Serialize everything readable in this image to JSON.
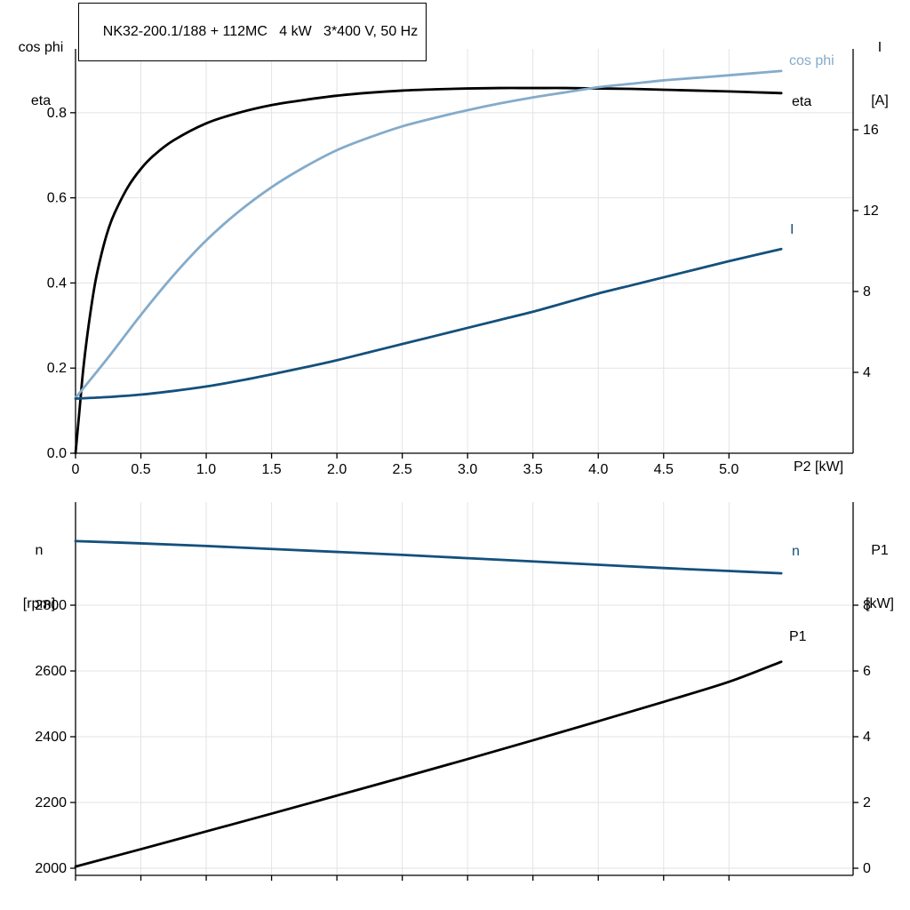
{
  "title": "NK32-200.1/188 + 112MC   4 kW   3*400 V, 50 Hz",
  "colors": {
    "curve_black": "#000000",
    "curve_light_blue": "#84abca",
    "curve_dark_blue": "#14507c",
    "grid": "#e3e3e3",
    "axis": "#000000",
    "text": "#000000",
    "background": "#ffffff"
  },
  "chart_data": [
    {
      "type": "line",
      "title": "NK32-200.1/188 + 112MC   4 kW   3*400 V, 50 Hz",
      "x": {
        "label": "P2 [kW]",
        "range": [
          0,
          5.95
        ],
        "ticks": [
          0,
          0.5,
          1.0,
          1.5,
          2.0,
          2.5,
          3.0,
          3.5,
          4.0,
          4.5,
          5.0
        ],
        "tick_labels": [
          "0",
          "0.5",
          "1.0",
          "1.5",
          "2.0",
          "2.5",
          "3.0",
          "3.5",
          "4.0",
          "4.5",
          "5.0"
        ]
      },
      "y_left": {
        "title_lines": [
          "cos phi",
          "eta"
        ],
        "range": [
          0,
          0.95
        ],
        "ticks": [
          0.0,
          0.2,
          0.4,
          0.6,
          0.8
        ],
        "tick_labels": [
          "0.0",
          "0.2",
          "0.4",
          "0.6",
          "0.8"
        ]
      },
      "y_right": {
        "title_lines": [
          "I",
          "[A]"
        ],
        "range": [
          0,
          20
        ],
        "ticks": [
          4,
          8,
          12,
          16
        ],
        "tick_labels": [
          "4",
          "8",
          "12",
          "16"
        ]
      },
      "grid": true,
      "legend_position": "curve-end-right",
      "series": [
        {
          "name": "eta",
          "axis": "left",
          "color": "curve_black",
          "points": [
            [
              0,
              0
            ],
            [
              0.03,
              0.1
            ],
            [
              0.06,
              0.2
            ],
            [
              0.1,
              0.3
            ],
            [
              0.15,
              0.4
            ],
            [
              0.2,
              0.47
            ],
            [
              0.25,
              0.525
            ],
            [
              0.3,
              0.565
            ],
            [
              0.4,
              0.625
            ],
            [
              0.5,
              0.668
            ],
            [
              0.6,
              0.7
            ],
            [
              0.75,
              0.735
            ],
            [
              1.0,
              0.775
            ],
            [
              1.25,
              0.8
            ],
            [
              1.5,
              0.818
            ],
            [
              1.75,
              0.83
            ],
            [
              2.0,
              0.84
            ],
            [
              2.25,
              0.847
            ],
            [
              2.5,
              0.852
            ],
            [
              2.75,
              0.855
            ],
            [
              3.0,
              0.857
            ],
            [
              3.25,
              0.858
            ],
            [
              3.5,
              0.858
            ],
            [
              3.75,
              0.858
            ],
            [
              4.0,
              0.857
            ],
            [
              4.25,
              0.856
            ],
            [
              4.5,
              0.854
            ],
            [
              4.75,
              0.852
            ],
            [
              5.0,
              0.85
            ],
            [
              5.2,
              0.848
            ],
            [
              5.4,
              0.846
            ]
          ]
        },
        {
          "name": "cos phi",
          "axis": "left",
          "color": "curve_light_blue",
          "points": [
            [
              0,
              0.13
            ],
            [
              0.25,
              0.225
            ],
            [
              0.5,
              0.325
            ],
            [
              0.75,
              0.418
            ],
            [
              1.0,
              0.5
            ],
            [
              1.25,
              0.568
            ],
            [
              1.5,
              0.625
            ],
            [
              1.75,
              0.672
            ],
            [
              2.0,
              0.712
            ],
            [
              2.25,
              0.742
            ],
            [
              2.5,
              0.768
            ],
            [
              2.75,
              0.788
            ],
            [
              3.0,
              0.806
            ],
            [
              3.25,
              0.822
            ],
            [
              3.5,
              0.836
            ],
            [
              3.75,
              0.848
            ],
            [
              4.0,
              0.86
            ],
            [
              4.25,
              0.868
            ],
            [
              4.5,
              0.876
            ],
            [
              4.75,
              0.882
            ],
            [
              5.0,
              0.888
            ],
            [
              5.2,
              0.893
            ],
            [
              5.4,
              0.898
            ]
          ]
        },
        {
          "name": "I",
          "axis": "right",
          "color": "curve_dark_blue",
          "points": [
            [
              0,
              2.7
            ],
            [
              0.25,
              2.78
            ],
            [
              0.5,
              2.9
            ],
            [
              0.75,
              3.08
            ],
            [
              1.0,
              3.3
            ],
            [
              1.25,
              3.58
            ],
            [
              1.5,
              3.9
            ],
            [
              1.75,
              4.24
            ],
            [
              2.0,
              4.6
            ],
            [
              2.25,
              5.0
            ],
            [
              2.5,
              5.4
            ],
            [
              2.75,
              5.8
            ],
            [
              3.0,
              6.2
            ],
            [
              3.25,
              6.6
            ],
            [
              3.5,
              7.0
            ],
            [
              3.75,
              7.45
            ],
            [
              4.0,
              7.9
            ],
            [
              4.25,
              8.3
            ],
            [
              4.5,
              8.7
            ],
            [
              4.75,
              9.1
            ],
            [
              5.0,
              9.5
            ],
            [
              5.2,
              9.8
            ],
            [
              5.4,
              10.1
            ]
          ]
        }
      ]
    },
    {
      "type": "line",
      "title": "",
      "x": {
        "label": "",
        "range": [
          0,
          5.95
        ],
        "ticks": [
          0,
          0.5,
          1.0,
          1.5,
          2.0,
          2.5,
          3.0,
          3.5,
          4.0,
          4.5,
          5.0
        ],
        "tick_labels": []
      },
      "y_left": {
        "title_lines": [
          "n",
          "[rpm]"
        ],
        "range": [
          1978.4,
          3113.5
        ],
        "ticks": [
          2000,
          2200,
          2400,
          2600,
          2800
        ],
        "tick_labels": [
          "2000",
          "2200",
          "2400",
          "2600",
          "2800"
        ]
      },
      "y_right": {
        "title_lines": [
          "P1",
          "[kW]"
        ],
        "range": [
          -0.216,
          11.135
        ],
        "ticks": [
          0,
          2,
          4,
          6,
          8
        ],
        "tick_labels": [
          "0",
          "2",
          "4",
          "6",
          "8"
        ]
      },
      "grid": true,
      "legend_position": "curve-end-right",
      "series": [
        {
          "name": "n",
          "axis": "left",
          "color": "curve_dark_blue",
          "points": [
            [
              0,
              2995
            ],
            [
              0.5,
              2988
            ],
            [
              1.0,
              2980
            ],
            [
              1.5,
              2971
            ],
            [
              2.0,
              2962
            ],
            [
              2.5,
              2953
            ],
            [
              3.0,
              2943
            ],
            [
              3.5,
              2933
            ],
            [
              4.0,
              2923
            ],
            [
              4.5,
              2913
            ],
            [
              5.0,
              2904
            ],
            [
              5.4,
              2897
            ]
          ]
        },
        {
          "name": "P1",
          "axis": "right",
          "color": "curve_black",
          "points": [
            [
              0,
              0.05
            ],
            [
              0.5,
              0.58
            ],
            [
              1.0,
              1.12
            ],
            [
              1.5,
              1.66
            ],
            [
              2.0,
              2.21
            ],
            [
              2.5,
              2.76
            ],
            [
              3.0,
              3.32
            ],
            [
              3.5,
              3.89
            ],
            [
              4.0,
              4.47
            ],
            [
              4.5,
              5.06
            ],
            [
              5.0,
              5.67
            ],
            [
              5.4,
              6.28
            ]
          ]
        }
      ]
    }
  ]
}
